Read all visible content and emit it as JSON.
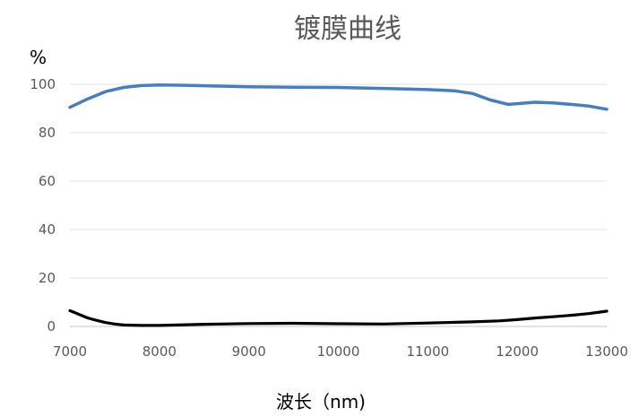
{
  "chart_data": {
    "type": "line",
    "title": "镀膜曲线",
    "ylabel": "%",
    "xlabel": "波长（nm)",
    "xlim": [
      7000,
      13000
    ],
    "ylim": [
      0,
      100
    ],
    "x_ticks": [
      "7000",
      "8000",
      "9000",
      "10000",
      "11000",
      "12000",
      "13000"
    ],
    "y_ticks": [
      "0",
      "20",
      "40",
      "60",
      "80",
      "100"
    ],
    "grid": true,
    "series": [
      {
        "color": "#4a7ebb",
        "x": [
          7000,
          7200,
          7400,
          7600,
          7800,
          8000,
          8300,
          8600,
          9000,
          9500,
          10000,
          10500,
          11000,
          11300,
          11500,
          11700,
          11900,
          12000,
          12200,
          12400,
          12600,
          12800,
          13000
        ],
        "y": [
          90.5,
          94,
          97,
          98.7,
          99.5,
          99.7,
          99.6,
          99.3,
          99.0,
          98.8,
          98.7,
          98.3,
          97.8,
          97.3,
          96.2,
          93.5,
          91.7,
          92.0,
          92.6,
          92.3,
          91.7,
          91.0,
          89.7
        ]
      },
      {
        "color": "#000000",
        "x": [
          7000,
          7100,
          7200,
          7300,
          7400,
          7500,
          7600,
          7800,
          8000,
          8500,
          9000,
          9500,
          10000,
          10500,
          11000,
          11500,
          11800,
          12000,
          12200,
          12400,
          12600,
          12800,
          13000
        ],
        "y": [
          6.5,
          5.0,
          3.5,
          2.5,
          1.6,
          1.0,
          0.6,
          0.4,
          0.4,
          0.9,
          1.2,
          1.3,
          1.1,
          1.0,
          1.4,
          1.9,
          2.3,
          2.8,
          3.5,
          4.0,
          4.6,
          5.3,
          6.3
        ]
      }
    ]
  }
}
